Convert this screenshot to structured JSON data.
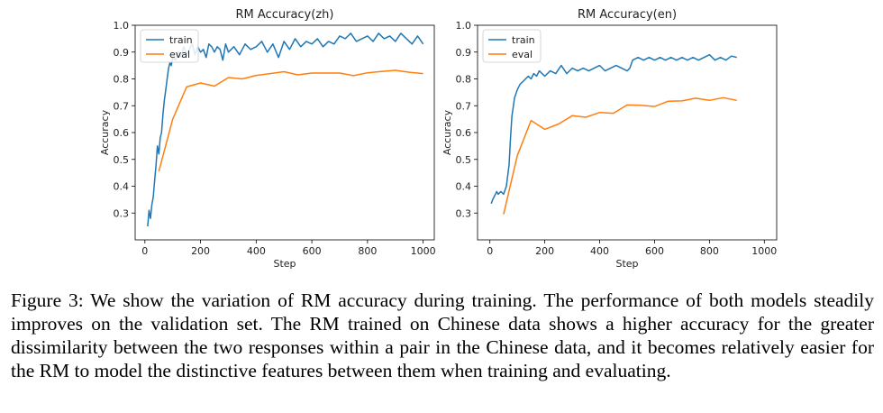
{
  "chart_data": [
    {
      "type": "line",
      "title": "RM Accuracy(zh)",
      "xlabel": "Step",
      "ylabel": "Accuracy",
      "xlim": [
        -35,
        1040
      ],
      "ylim": [
        0.2,
        1.0
      ],
      "xticks": [
        0,
        200,
        400,
        600,
        800,
        1000
      ],
      "yticks": [
        0.3,
        0.4,
        0.5,
        0.6,
        0.7,
        0.8,
        0.9,
        1.0
      ],
      "xtick_labels": [
        "0",
        "200",
        "400",
        "600",
        "800",
        "1000"
      ],
      "ytick_labels": [
        "0.3",
        "0.4",
        "0.5",
        "0.6",
        "0.7",
        "0.8",
        "0.9",
        "1.0"
      ],
      "legend": [
        "train",
        "eval"
      ],
      "legend_position": "top-left",
      "series": [
        {
          "name": "train",
          "color": "#1f77b4",
          "x": [
            10,
            15,
            20,
            25,
            30,
            35,
            40,
            45,
            50,
            55,
            60,
            65,
            70,
            75,
            80,
            85,
            90,
            95,
            100,
            110,
            120,
            130,
            140,
            150,
            160,
            170,
            180,
            190,
            200,
            210,
            220,
            230,
            240,
            250,
            260,
            270,
            280,
            290,
            300,
            320,
            340,
            360,
            380,
            400,
            420,
            440,
            460,
            480,
            500,
            520,
            540,
            560,
            580,
            600,
            620,
            640,
            660,
            680,
            700,
            720,
            740,
            760,
            780,
            800,
            820,
            840,
            860,
            880,
            900,
            920,
            940,
            960,
            980,
            1000
          ],
          "y": [
            0.25,
            0.31,
            0.28,
            0.33,
            0.36,
            0.42,
            0.48,
            0.55,
            0.52,
            0.58,
            0.6,
            0.67,
            0.72,
            0.76,
            0.8,
            0.84,
            0.86,
            0.85,
            0.88,
            0.87,
            0.9,
            0.88,
            0.92,
            0.89,
            0.91,
            0.93,
            0.89,
            0.92,
            0.9,
            0.91,
            0.88,
            0.93,
            0.92,
            0.9,
            0.92,
            0.91,
            0.87,
            0.93,
            0.9,
            0.92,
            0.89,
            0.93,
            0.91,
            0.92,
            0.94,
            0.9,
            0.93,
            0.88,
            0.94,
            0.91,
            0.95,
            0.92,
            0.94,
            0.93,
            0.95,
            0.92,
            0.94,
            0.93,
            0.96,
            0.95,
            0.97,
            0.94,
            0.95,
            0.96,
            0.94,
            0.97,
            0.95,
            0.96,
            0.94,
            0.97,
            0.95,
            0.93,
            0.96,
            0.93
          ]
        },
        {
          "name": "eval",
          "color": "#ff7f0e",
          "x": [
            50,
            100,
            150,
            200,
            250,
            300,
            350,
            400,
            450,
            500,
            550,
            600,
            650,
            700,
            750,
            800,
            850,
            900,
            950,
            1000
          ],
          "y": [
            0.455,
            0.65,
            0.77,
            0.785,
            0.773,
            0.805,
            0.8,
            0.813,
            0.82,
            0.827,
            0.815,
            0.822,
            0.822,
            0.822,
            0.812,
            0.823,
            0.828,
            0.832,
            0.825,
            0.82
          ]
        }
      ]
    },
    {
      "type": "line",
      "title": "RM Accuracy(en)",
      "xlabel": "Step",
      "ylabel": "Accuracy",
      "xlim": [
        -45,
        1045
      ],
      "ylim": [
        0.2,
        1.0
      ],
      "xticks": [
        0,
        200,
        400,
        600,
        800,
        1000
      ],
      "yticks": [
        0.3,
        0.4,
        0.5,
        0.6,
        0.7,
        0.8,
        0.9,
        1.0
      ],
      "xtick_labels": [
        "0",
        "200",
        "400",
        "600",
        "800",
        "1000"
      ],
      "ytick_labels": [
        "0.3",
        "0.4",
        "0.5",
        "0.6",
        "0.7",
        "0.8",
        "0.9",
        "1.0"
      ],
      "legend": [
        "train",
        "eval"
      ],
      "legend_position": "top-left",
      "series": [
        {
          "name": "train",
          "color": "#1f77b4",
          "x": [
            5,
            10,
            20,
            25,
            30,
            40,
            50,
            60,
            70,
            75,
            80,
            90,
            100,
            110,
            120,
            130,
            140,
            150,
            160,
            170,
            180,
            190,
            200,
            220,
            240,
            260,
            280,
            300,
            320,
            340,
            360,
            380,
            400,
            420,
            440,
            460,
            480,
            500,
            510,
            520,
            540,
            560,
            580,
            600,
            620,
            640,
            660,
            680,
            700,
            720,
            740,
            760,
            780,
            800,
            820,
            840,
            860,
            880,
            900
          ],
          "y": [
            0.335,
            0.35,
            0.37,
            0.38,
            0.37,
            0.38,
            0.37,
            0.4,
            0.48,
            0.58,
            0.66,
            0.73,
            0.76,
            0.78,
            0.79,
            0.8,
            0.81,
            0.8,
            0.82,
            0.81,
            0.83,
            0.82,
            0.81,
            0.83,
            0.82,
            0.85,
            0.82,
            0.84,
            0.83,
            0.84,
            0.83,
            0.84,
            0.85,
            0.83,
            0.84,
            0.85,
            0.84,
            0.83,
            0.84,
            0.87,
            0.88,
            0.87,
            0.88,
            0.87,
            0.88,
            0.87,
            0.88,
            0.87,
            0.88,
            0.87,
            0.88,
            0.87,
            0.88,
            0.89,
            0.87,
            0.88,
            0.87,
            0.885,
            0.88
          ]
        },
        {
          "name": "eval",
          "color": "#ff7f0e",
          "x": [
            50,
            100,
            150,
            200,
            250,
            300,
            350,
            400,
            450,
            500,
            550,
            600,
            650,
            700,
            750,
            800,
            850,
            900
          ],
          "y": [
            0.295,
            0.515,
            0.645,
            0.612,
            0.632,
            0.663,
            0.657,
            0.675,
            0.672,
            0.703,
            0.702,
            0.697,
            0.717,
            0.718,
            0.728,
            0.72,
            0.73,
            0.72
          ]
        }
      ]
    }
  ],
  "caption": "Figure 3: We show the variation of RM accuracy during training. The performance of both models steadily improves on the validation set. The RM trained on Chinese data shows a higher accuracy for the greater dissimilarity between the two responses within a pair in the Chinese data, and it becomes relatively easier for the RM to model the distinctive features between them when training and evaluating."
}
